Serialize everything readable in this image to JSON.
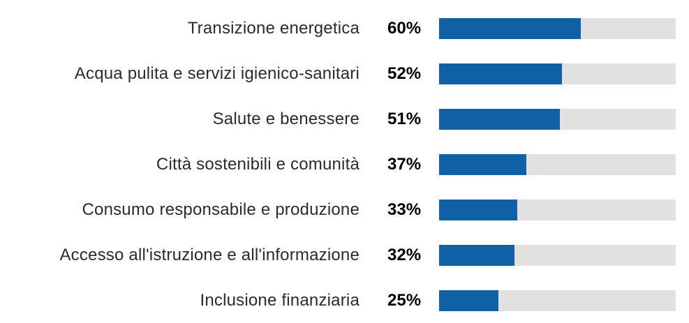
{
  "chart_data": {
    "type": "bar",
    "orientation": "horizontal",
    "title": "",
    "xlabel": "",
    "ylabel": "",
    "xlim": [
      0,
      100
    ],
    "grid": false,
    "legend": false,
    "bar_color": "#1060a5",
    "track_color": "#e1e1e1",
    "label_color": "#2b2b2b",
    "value_color": "#000000",
    "categories": [
      "Transizione energetica",
      "Acqua pulita e servizi igienico-sanitari",
      "Salute e benessere",
      "Città sostenibili e comunità",
      "Consumo responsabile e produzione",
      "Accesso all'istruzione e all'informazione",
      "Inclusione finanziaria"
    ],
    "values": [
      60,
      52,
      51,
      37,
      33,
      32,
      25
    ],
    "value_labels": [
      "60%",
      "52%",
      "51%",
      "37%",
      "33%",
      "32%",
      "25%"
    ]
  }
}
